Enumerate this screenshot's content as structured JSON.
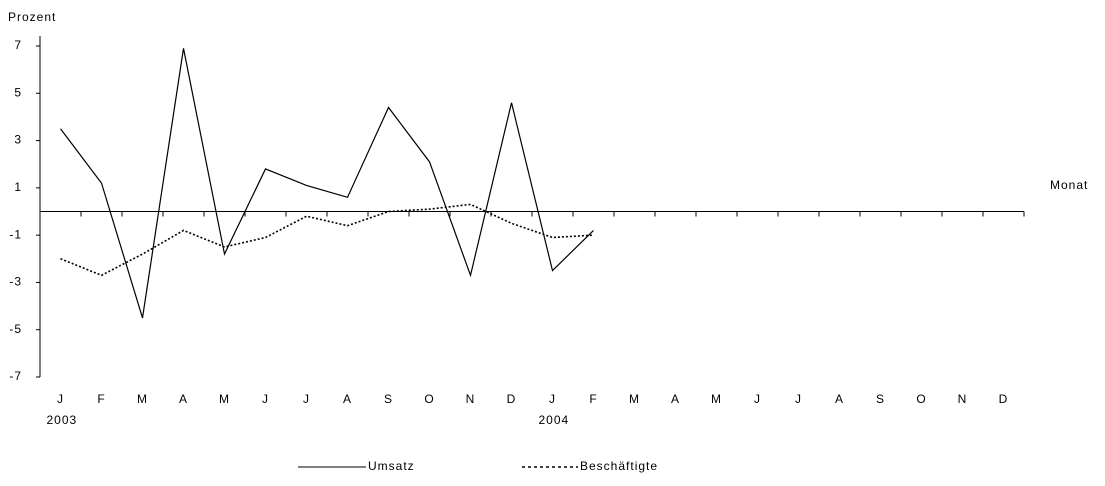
{
  "chart_data": {
    "type": "line",
    "ylabel": "Prozent",
    "xlabel": "Monat",
    "categories": [
      "J",
      "F",
      "M",
      "A",
      "M",
      "J",
      "J",
      "A",
      "S",
      "O",
      "N",
      "D",
      "J",
      "F",
      "M",
      "A",
      "M",
      "J",
      "J",
      "A",
      "S",
      "O",
      "N",
      "D"
    ],
    "years": [
      "2003",
      null,
      null,
      null,
      null,
      null,
      null,
      null,
      null,
      null,
      null,
      null,
      "2004",
      null,
      null,
      null,
      null,
      null,
      null,
      null,
      null,
      null,
      null,
      null
    ],
    "series": [
      {
        "name": "Umsatz",
        "color": "#000000",
        "dash": "solid",
        "values": [
          3.5,
          1.2,
          -4.5,
          6.9,
          -1.8,
          1.8,
          1.1,
          0.6,
          4.4,
          2.1,
          -2.7,
          4.6,
          -2.5,
          -0.8,
          null,
          null,
          null,
          null,
          null,
          null,
          null,
          null,
          null,
          null
        ]
      },
      {
        "name": "Beschäftigte",
        "color": "#000000",
        "dash": "dotted",
        "values": [
          -2.0,
          -2.7,
          -1.8,
          -0.8,
          -1.5,
          -1.1,
          -0.2,
          -0.6,
          0.0,
          0.1,
          0.3,
          -0.5,
          -1.1,
          -1.0,
          null,
          null,
          null,
          null,
          null,
          null,
          null,
          null,
          null,
          null
        ]
      }
    ],
    "ylim": [
      -7,
      7
    ],
    "yticks": [
      -7,
      -5,
      -3,
      -1,
      1,
      3,
      5,
      7
    ],
    "grid": false
  }
}
